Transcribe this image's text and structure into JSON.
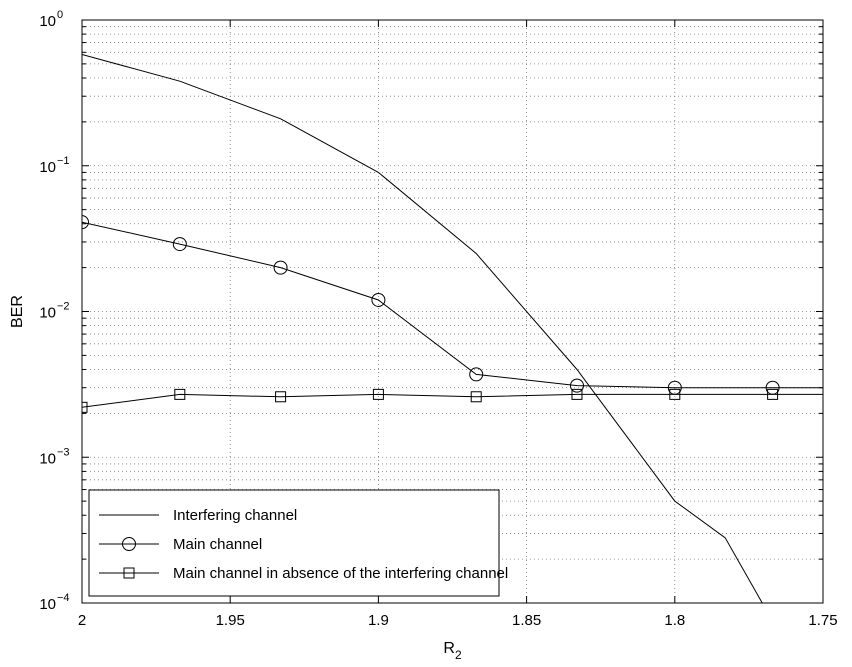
{
  "chart_data": {
    "type": "line",
    "xlabel": "R",
    "xlabel_subscript": "2",
    "ylabel": "BER",
    "x_reversed": true,
    "xlim": [
      2,
      1.75
    ],
    "ylim": [
      0.0001,
      1
    ],
    "y_scale": "log",
    "x_ticks": [
      "2",
      "1.95",
      "1.9",
      "1.85",
      "1.8",
      "1.75"
    ],
    "x_tick_values": [
      2,
      1.95,
      1.9,
      1.85,
      1.8,
      1.75
    ],
    "y_ticks": [
      {
        "value": 1,
        "base": "10",
        "exp": "0"
      },
      {
        "value": 0.1,
        "base": "10",
        "exp": "−1"
      },
      {
        "value": 0.01,
        "base": "10",
        "exp": "−2"
      },
      {
        "value": 0.001,
        "base": "10",
        "exp": "−3"
      },
      {
        "value": 0.0001,
        "base": "10",
        "exp": "−4"
      }
    ],
    "grid": true,
    "legend_position": "bottom-left",
    "series": [
      {
        "name": "Interfering channel",
        "marker": "none",
        "x": [
          2,
          1.967,
          1.933,
          1.9,
          1.867,
          1.833,
          1.8,
          1.783,
          1.767
        ],
        "y": [
          0.58,
          0.38,
          0.21,
          0.09,
          0.025,
          0.004,
          0.0005,
          0.00028,
          7.5e-05
        ]
      },
      {
        "name": "Main channel",
        "marker": "circle",
        "x": [
          2,
          1.967,
          1.933,
          1.9,
          1.867,
          1.833,
          1.8,
          1.767,
          1.733
        ],
        "y": [
          0.041,
          0.029,
          0.02,
          0.012,
          0.0037,
          0.0031,
          0.003,
          0.003,
          0.003
        ]
      },
      {
        "name": "Main channel in absence of the interfering channel",
        "marker": "square",
        "x": [
          2,
          1.967,
          1.933,
          1.9,
          1.867,
          1.833,
          1.8,
          1.767,
          1.733
        ],
        "y": [
          0.0022,
          0.0027,
          0.0026,
          0.0027,
          0.0026,
          0.0027,
          0.0027,
          0.0027,
          0.0027
        ]
      }
    ]
  }
}
